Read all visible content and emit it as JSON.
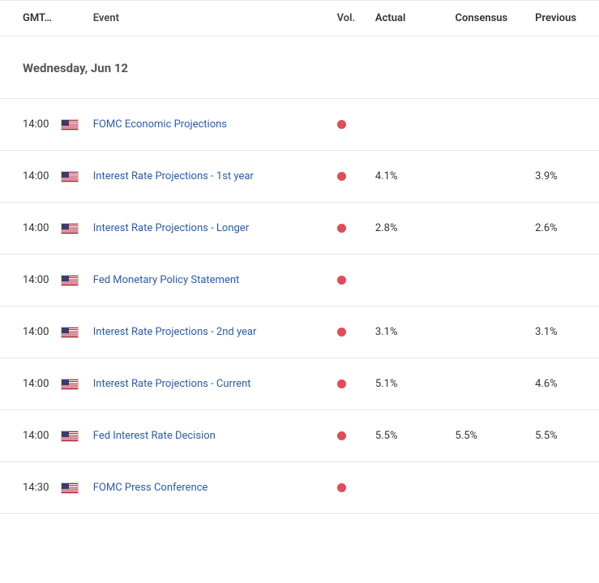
{
  "header": {
    "time": "GMT…",
    "event": "Event",
    "vol": "Vol.",
    "actual": "Actual",
    "consensus": "Consensus",
    "previous": "Previous"
  },
  "date_label": "Wednesday, Jun 12",
  "vol_color_high": "#e14b5a",
  "rows": [
    {
      "time": "14:00",
      "flag": "us",
      "event": "FOMC Economic Projections",
      "actual": "",
      "consensus": "",
      "previous": ""
    },
    {
      "time": "14:00",
      "flag": "us",
      "event": "Interest Rate Projections - 1st year",
      "actual": "4.1%",
      "consensus": "",
      "previous": "3.9%"
    },
    {
      "time": "14:00",
      "flag": "us",
      "event": "Interest Rate Projections - Longer",
      "actual": "2.8%",
      "consensus": "",
      "previous": "2.6%"
    },
    {
      "time": "14:00",
      "flag": "us",
      "event": "Fed Monetary Policy Statement",
      "actual": "",
      "consensus": "",
      "previous": ""
    },
    {
      "time": "14:00",
      "flag": "us",
      "event": "Interest Rate Projections - 2nd year",
      "actual": "3.1%",
      "consensus": "",
      "previous": "3.1%"
    },
    {
      "time": "14:00",
      "flag": "us",
      "event": "Interest Rate Projections - Current",
      "actual": "5.1%",
      "consensus": "",
      "previous": "4.6%"
    },
    {
      "time": "14:00",
      "flag": "us",
      "event": "Fed Interest Rate Decision",
      "actual": "5.5%",
      "consensus": "5.5%",
      "previous": "5.5%"
    },
    {
      "time": "14:30",
      "flag": "us",
      "event": "FOMC Press Conference",
      "actual": "",
      "consensus": "",
      "previous": ""
    }
  ]
}
